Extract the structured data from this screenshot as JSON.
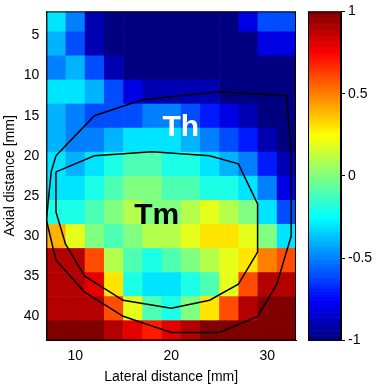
{
  "chart_data": {
    "type": "heatmap",
    "xlabel": "Lateral distance [mm]",
    "ylabel": "Axial distance [mm]",
    "xlim": [
      7,
      33
    ],
    "xticks": [
      10,
      20,
      30
    ],
    "ylim": [
      2,
      43
    ],
    "yticks": [
      5,
      10,
      15,
      20,
      25,
      30,
      35,
      40
    ],
    "grid": false,
    "x": [
      8,
      10,
      12,
      14,
      16,
      18,
      20,
      22,
      24,
      26,
      28,
      30,
      32
    ],
    "y": [
      3,
      6,
      9,
      12,
      15,
      18,
      21,
      24,
      27,
      30,
      33,
      36,
      39,
      42
    ],
    "z": [
      [
        -0.3,
        -0.5,
        -0.9,
        -1,
        -1,
        -1,
        -1,
        -1,
        -1,
        -1,
        -0.8,
        -0.6,
        -0.6
      ],
      [
        -0.4,
        -0.6,
        -0.9,
        -1,
        -1,
        -1,
        -1,
        -1,
        -1,
        -1,
        -1,
        -0.8,
        -0.8
      ],
      [
        -0.5,
        -0.4,
        -0.6,
        -0.9,
        -1,
        -1,
        -1,
        -1,
        -1,
        -1,
        -1,
        -1,
        -1
      ],
      [
        -0.3,
        -0.3,
        -0.4,
        -0.6,
        -0.8,
        -0.9,
        -0.9,
        -0.9,
        -0.9,
        -1,
        -1,
        -1,
        -1
      ],
      [
        -0.4,
        -0.5,
        -0.6,
        -0.6,
        -0.6,
        -0.5,
        -0.5,
        -0.6,
        -0.7,
        -0.8,
        -0.9,
        -1,
        -1
      ],
      [
        -0.4,
        -0.5,
        -0.5,
        -0.4,
        -0.3,
        -0.3,
        -0.3,
        -0.4,
        -0.5,
        -0.6,
        -0.7,
        -0.9,
        -1
      ],
      [
        -0.3,
        -0.4,
        -0.3,
        -0.2,
        -0.1,
        -0.1,
        -0.2,
        -0.2,
        -0.3,
        -0.4,
        -0.5,
        -0.7,
        -0.9
      ],
      [
        -0.3,
        -0.3,
        -0.2,
        -0.1,
        0,
        0,
        -0.1,
        -0.1,
        -0.2,
        -0.2,
        -0.3,
        -0.5,
        -0.8
      ],
      [
        -0.2,
        -0.2,
        -0.1,
        0,
        0.1,
        0,
        0,
        0.1,
        0.2,
        0.1,
        0,
        -0.3,
        -0.6
      ],
      [
        0.4,
        0.2,
        0,
        -0.1,
        0,
        0.1,
        0.1,
        0.2,
        0.3,
        0.3,
        0.2,
        0,
        -0.3
      ],
      [
        0.9,
        0.9,
        0.6,
        0.1,
        -0.1,
        -0.2,
        -0.1,
        0,
        0.1,
        0.2,
        0.3,
        0.5,
        0.6
      ],
      [
        0.9,
        0.9,
        0.8,
        0.3,
        -0.2,
        -0.3,
        -0.3,
        -0.2,
        -0.1,
        0.2,
        0.6,
        0.9,
        0.9
      ],
      [
        0.9,
        0.9,
        0.9,
        0.6,
        0.2,
        -0.1,
        -0.2,
        0,
        0.3,
        0.6,
        0.9,
        1,
        1
      ],
      [
        1,
        1,
        1,
        0.9,
        0.8,
        0.7,
        0.8,
        0.9,
        1,
        1,
        1,
        1,
        1
      ]
    ],
    "colorbar": {
      "range": [
        -1,
        1
      ],
      "ticks": [
        -1,
        -0.5,
        0,
        0.5,
        1
      ]
    },
    "contours": [
      {
        "color": "#000000",
        "points": [
          [
            8,
            20
          ],
          [
            12,
            15
          ],
          [
            17,
            13
          ],
          [
            25,
            12
          ],
          [
            32,
            12.5
          ],
          [
            32.5,
            20
          ],
          [
            32.5,
            30
          ],
          [
            31,
            36
          ],
          [
            29,
            40
          ],
          [
            25,
            42
          ],
          [
            20,
            42
          ],
          [
            15,
            40
          ],
          [
            11,
            37
          ],
          [
            8,
            33
          ],
          [
            7,
            28
          ],
          [
            7.5,
            22
          ]
        ]
      },
      {
        "color": "#000000",
        "points": [
          [
            8,
            22
          ],
          [
            12,
            20
          ],
          [
            18,
            19.5
          ],
          [
            24,
            20
          ],
          [
            27,
            21
          ],
          [
            29,
            26
          ],
          [
            29,
            32
          ],
          [
            27,
            36
          ],
          [
            24,
            38
          ],
          [
            20,
            39
          ],
          [
            15,
            38
          ],
          [
            11,
            35
          ],
          [
            9,
            31
          ],
          [
            8,
            27
          ]
        ]
      }
    ],
    "annotations": [
      {
        "text": "Th",
        "x": 21,
        "y": 16.5,
        "color": "#ffffff"
      },
      {
        "text": "Tm",
        "x": 18.5,
        "y": 27.5,
        "color": "#000000"
      }
    ]
  }
}
